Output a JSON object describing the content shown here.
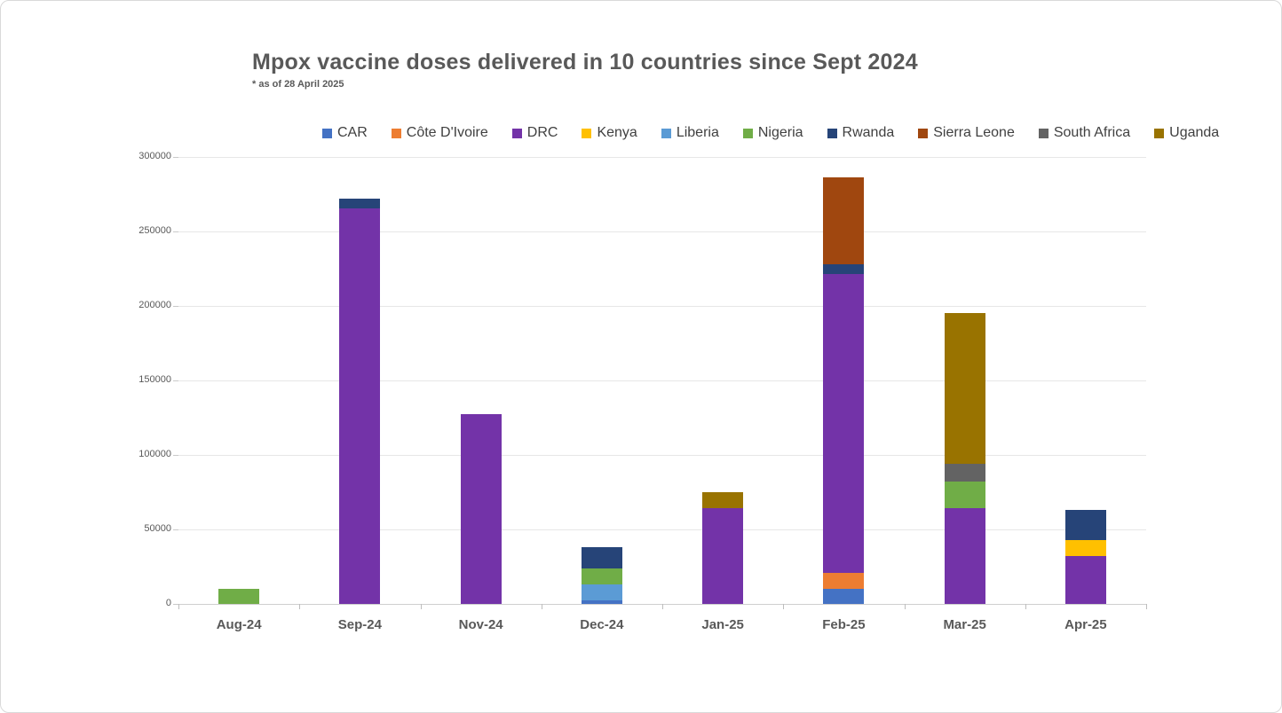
{
  "header": {
    "title": "Mpox vaccine doses delivered in 10 countries since Sept 2024",
    "subtitle": "* as of 28 April 2025"
  },
  "chart_data": {
    "type": "bar",
    "stacked": true,
    "title": "Mpox vaccine doses delivered in 10 countries since Sept 2024",
    "subtitle": "* as of 28 April 2025",
    "categories": [
      "Aug-24",
      "Sep-24",
      "Nov-24",
      "Dec-24",
      "Jan-25",
      "Feb-25",
      "Mar-25",
      "Apr-25"
    ],
    "series": [
      {
        "name": "CAR",
        "color": "#4472C4",
        "values": [
          0,
          0,
          0,
          2500,
          0,
          10000,
          0,
          0
        ]
      },
      {
        "name": "Côte D'Ivoire",
        "color": "#ED7D31",
        "values": [
          0,
          0,
          0,
          0,
          0,
          11000,
          0,
          0
        ]
      },
      {
        "name": "DRC",
        "color": "#7333A8",
        "values": [
          0,
          265000,
          127000,
          0,
          64000,
          200000,
          64000,
          32000
        ]
      },
      {
        "name": "Kenya",
        "color": "#FFC000",
        "values": [
          0,
          0,
          0,
          0,
          0,
          0,
          0,
          11000
        ]
      },
      {
        "name": "Liberia",
        "color": "#5B9BD5",
        "values": [
          0,
          0,
          0,
          10500,
          0,
          0,
          0,
          0
        ]
      },
      {
        "name": "Nigeria",
        "color": "#70AD47",
        "values": [
          10000,
          0,
          0,
          11000,
          0,
          0,
          18000,
          0
        ]
      },
      {
        "name": "Rwanda",
        "color": "#264478",
        "values": [
          0,
          7000,
          0,
          14000,
          0,
          7000,
          0,
          20000
        ]
      },
      {
        "name": "Sierra Leone",
        "color": "#A0470F",
        "values": [
          0,
          0,
          0,
          0,
          0,
          58000,
          0,
          0
        ]
      },
      {
        "name": "South Africa",
        "color": "#636363",
        "values": [
          0,
          0,
          0,
          0,
          0,
          0,
          12000,
          0
        ]
      },
      {
        "name": "Uganda",
        "color": "#997300",
        "values": [
          0,
          0,
          0,
          0,
          11000,
          0,
          101000,
          0
        ]
      }
    ],
    "yticks": [
      0,
      50000,
      100000,
      150000,
      200000,
      250000,
      300000
    ],
    "ylim": [
      0,
      300000
    ],
    "xlabel": "",
    "ylabel": "",
    "grid": true,
    "legend_position": "top"
  }
}
